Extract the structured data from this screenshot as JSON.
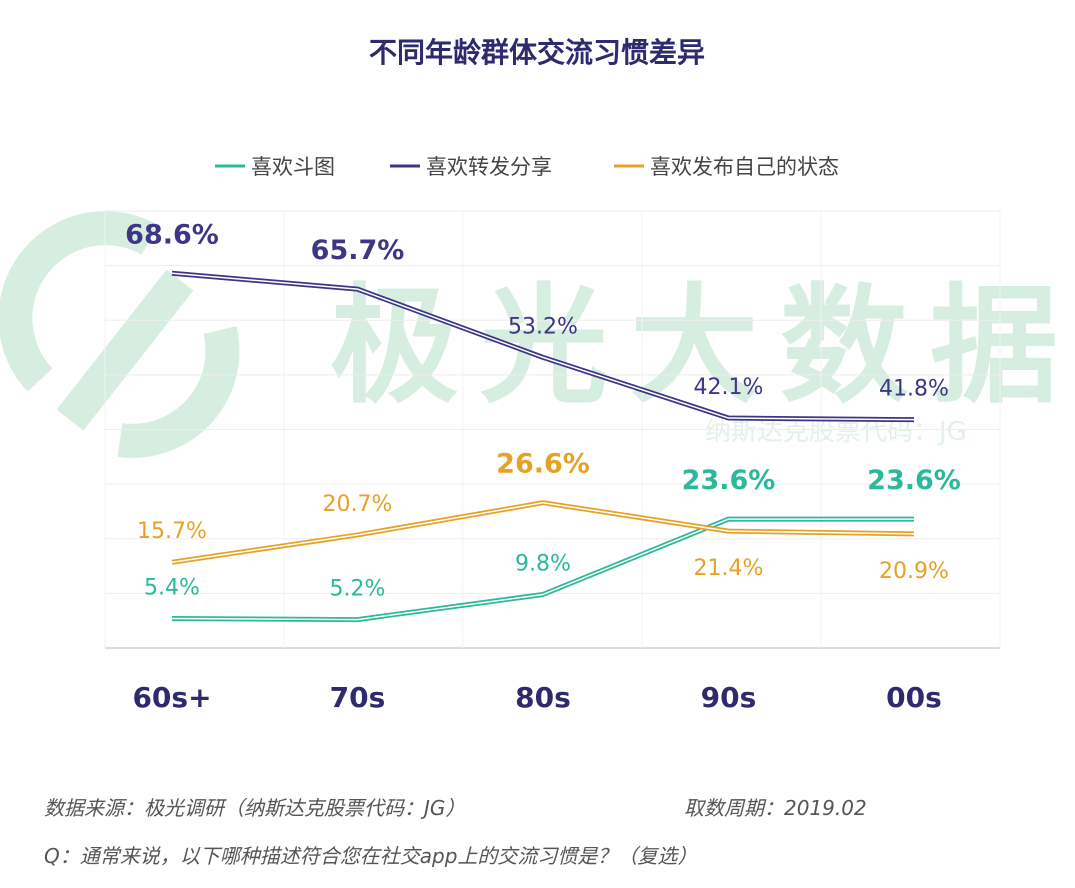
{
  "chart_data": {
    "type": "line",
    "title": "不同年龄群体交流习惯差异",
    "categories": [
      "60s+",
      "70s",
      "80s",
      "90s",
      "00s"
    ],
    "ylim": [
      0,
      80
    ],
    "grid": true,
    "legend_position": "top",
    "series": [
      {
        "name": "喜欢斗图",
        "color": "#2bb99a",
        "values": [
          5.4,
          5.2,
          9.8,
          23.6,
          23.6
        ],
        "labels": [
          "5.4%",
          "5.2%",
          "9.8%",
          "23.6%",
          "23.6%"
        ],
        "bold": [
          false,
          false,
          false,
          true,
          true
        ]
      },
      {
        "name": "喜欢转发分享",
        "color": "#3d3585",
        "values": [
          68.6,
          65.7,
          53.2,
          42.1,
          41.8
        ],
        "labels": [
          "68.6%",
          "65.7%",
          "53.2%",
          "42.1%",
          "41.8%"
        ],
        "bold": [
          true,
          true,
          false,
          false,
          false
        ]
      },
      {
        "name": "喜欢发布自己的状态",
        "color": "#e6a226",
        "values": [
          15.7,
          20.7,
          26.6,
          21.4,
          20.9
        ],
        "labels": [
          "15.7%",
          "20.7%",
          "26.6%",
          "21.4%",
          "20.9%"
        ],
        "bold": [
          false,
          false,
          true,
          false,
          false
        ]
      }
    ]
  },
  "colors": {
    "title": "#2e2a6e",
    "watermark": "#d6eedf",
    "grid": "#ececec"
  },
  "watermark": {
    "text": "极光大数据",
    "subtext": "纳斯达克股票代码：JG",
    "logo": "jiguang-logo"
  },
  "footer": {
    "source": "数据来源：极光调研（纳斯达克股票代码：JG）",
    "period": "取数周期：2019.02",
    "question": "Q：通常来说，以下哪种描述符合您在社交app上的交流习惯是？（复选）"
  }
}
